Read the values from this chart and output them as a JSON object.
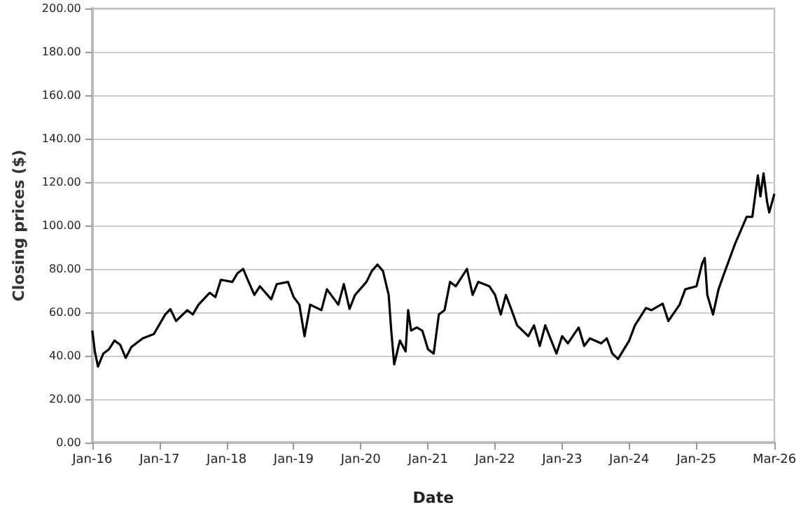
{
  "chart_data": {
    "type": "line",
    "xlabel": "Date",
    "ylabel": "Closing prices ($)",
    "x": [
      "2016-01-01",
      "2016-01-15",
      "2016-02-01",
      "2016-03-01",
      "2016-04-01",
      "2016-05-01",
      "2016-06-01",
      "2016-07-01",
      "2016-08-01",
      "2016-10-01",
      "2016-12-01",
      "2017-02-01",
      "2017-03-01",
      "2017-04-01",
      "2017-06-01",
      "2017-07-01",
      "2017-08-01",
      "2017-10-01",
      "2017-11-01",
      "2017-12-01",
      "2018-02-01",
      "2018-03-01",
      "2018-04-01",
      "2018-05-01",
      "2018-06-01",
      "2018-07-01",
      "2018-09-01",
      "2018-10-01",
      "2018-12-01",
      "2019-01-01",
      "2019-02-01",
      "2019-03-01",
      "2019-04-01",
      "2019-06-01",
      "2019-07-01",
      "2019-09-01",
      "2019-10-01",
      "2019-11-01",
      "2019-12-01",
      "2020-02-01",
      "2020-03-01",
      "2020-04-01",
      "2020-05-01",
      "2020-06-01",
      "2020-06-15",
      "2020-07-01",
      "2020-08-01",
      "2020-09-01",
      "2020-09-15",
      "2020-10-01",
      "2020-11-01",
      "2020-12-01",
      "2021-01-01",
      "2021-02-01",
      "2021-03-01",
      "2021-04-01",
      "2021-05-01",
      "2021-06-01",
      "2021-08-01",
      "2021-09-01",
      "2021-10-01",
      "2021-12-01",
      "2022-01-01",
      "2022-02-01",
      "2022-03-01",
      "2022-04-01",
      "2022-05-01",
      "2022-07-01",
      "2022-08-01",
      "2022-09-01",
      "2022-10-01",
      "2022-12-01",
      "2023-01-01",
      "2023-02-01",
      "2023-04-01",
      "2023-05-01",
      "2023-06-01",
      "2023-08-01",
      "2023-09-01",
      "2023-10-01",
      "2023-11-01",
      "2024-01-01",
      "2024-02-01",
      "2024-04-01",
      "2024-05-01",
      "2024-07-01",
      "2024-08-01",
      "2024-10-01",
      "2024-11-01",
      "2025-01-01",
      "2025-02-01",
      "2025-02-15",
      "2025-03-01",
      "2025-04-01",
      "2025-05-01",
      "2025-06-01",
      "2025-08-01",
      "2025-09-01",
      "2025-10-01",
      "2025-11-01",
      "2025-12-01",
      "2025-12-15",
      "2026-01-01",
      "2026-01-20",
      "2026-02-01",
      "2026-03-01"
    ],
    "series": [
      {
        "color": "#000000",
        "values": [
          51.6,
          42,
          35,
          41,
          43,
          47,
          45,
          39,
          44,
          48,
          50,
          59,
          61.5,
          56,
          61,
          59,
          63.5,
          69,
          67,
          75,
          74,
          78,
          80,
          74,
          68,
          72,
          66,
          73,
          74,
          67,
          63.5,
          49,
          63.5,
          61,
          70.6,
          63.5,
          73,
          61.6,
          68,
          74,
          79,
          82,
          79,
          68,
          51.6,
          36,
          47,
          42,
          61,
          51.6,
          53,
          51.6,
          43,
          41,
          59,
          61,
          74,
          72,
          80,
          68,
          74,
          72,
          68,
          59,
          68,
          61,
          54,
          49,
          54,
          44.5,
          54,
          41,
          49,
          45.7,
          53,
          44.5,
          48,
          45.7,
          48,
          41,
          38.5,
          47,
          54,
          62,
          61,
          64,
          56,
          63.5,
          70.6,
          72,
          82.5,
          85,
          68,
          59,
          70.6,
          78,
          92,
          98,
          104,
          104,
          123,
          113.4,
          124,
          111,
          106,
          114.6
        ]
      }
    ],
    "xlim": [
      "2016-01-01",
      "2026-03-01"
    ],
    "xticks": [
      {
        "value": "2016-01-01",
        "label": "Jan-16"
      },
      {
        "value": "2017-01-01",
        "label": "Jan-17"
      },
      {
        "value": "2018-01-01",
        "label": "Jan-18"
      },
      {
        "value": "2019-01-01",
        "label": "Jan-19"
      },
      {
        "value": "2020-01-01",
        "label": "Jan-20"
      },
      {
        "value": "2021-01-01",
        "label": "Jan-21"
      },
      {
        "value": "2022-01-01",
        "label": "Jan-22"
      },
      {
        "value": "2023-01-01",
        "label": "Jan-23"
      },
      {
        "value": "2024-01-01",
        "label": "Jan-24"
      },
      {
        "value": "2025-01-01",
        "label": "Jan-25"
      },
      {
        "value": "2026-03-01",
        "label": "Mar-26"
      }
    ],
    "ylim": [
      0,
      200
    ],
    "yticks": [
      {
        "value": 0,
        "label": "0.00"
      },
      {
        "value": 20,
        "label": "20.00"
      },
      {
        "value": 40,
        "label": "40.00"
      },
      {
        "value": 60,
        "label": "60.00"
      },
      {
        "value": 80,
        "label": "80.00"
      },
      {
        "value": 100,
        "label": "100.00"
      },
      {
        "value": 120,
        "label": "120.00"
      },
      {
        "value": 140,
        "label": "140.00"
      },
      {
        "value": 160,
        "label": "160.00"
      },
      {
        "value": 180,
        "label": "180.00"
      },
      {
        "value": 200,
        "label": "200.00"
      }
    ],
    "grid": "y",
    "marker": "none",
    "line_style": "solid"
  }
}
